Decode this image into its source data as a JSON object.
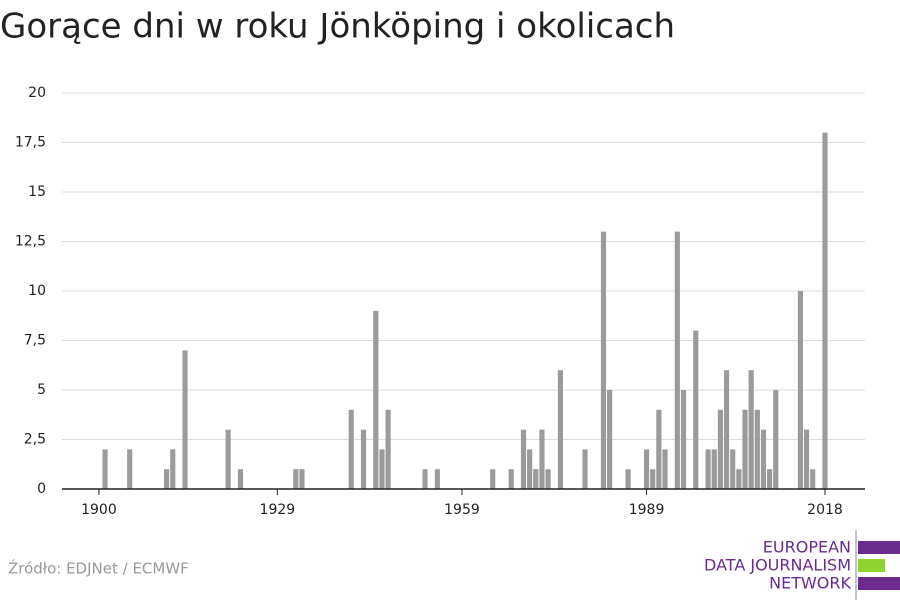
{
  "chart_data": {
    "type": "bar",
    "title": "Gorące dni w roku Jönköping i okolicach",
    "x": [
      1901,
      1905,
      1911,
      1912,
      1914,
      1921,
      1923,
      1932,
      1933,
      1941,
      1943,
      1945,
      1946,
      1947,
      1953,
      1955,
      1964,
      1967,
      1969,
      1970,
      1971,
      1972,
      1973,
      1975,
      1979,
      1982,
      1983,
      1986,
      1989,
      1990,
      1991,
      1992,
      1994,
      1995,
      1997,
      1999,
      2000,
      2001,
      2002,
      2003,
      2004,
      2005,
      2006,
      2007,
      2008,
      2009,
      2010,
      2014,
      2015,
      2016,
      2018
    ],
    "values": [
      2,
      2,
      1,
      2,
      7,
      3,
      1,
      1,
      1,
      4,
      3,
      9,
      2,
      4,
      1,
      1,
      1,
      1,
      3,
      2,
      1,
      3,
      1,
      6,
      2,
      13,
      5,
      1,
      2,
      1,
      4,
      2,
      13,
      5,
      8,
      2,
      2,
      4,
      6,
      2,
      1,
      4,
      6,
      4,
      3,
      1,
      5,
      10,
      3,
      1,
      18
    ],
    "color": "#9b9b9b",
    "xlim": [
      1894,
      2024.5
    ],
    "xticks": [
      1900,
      1929,
      1959,
      1989,
      2018
    ],
    "ylim": [
      0,
      20
    ],
    "yticks": [
      0,
      {
        "value": 2.5,
        "label": "2,5"
      },
      5,
      {
        "value": 7.5,
        "label": "7,5"
      },
      10,
      {
        "value": 12.5,
        "label": "12,5"
      },
      15,
      {
        "value": 17.5,
        "label": "17,5"
      },
      20
    ],
    "grid": true
  },
  "source": "Źródło: EDJNet / ECMWF",
  "logo": [
    "EUROPEAN",
    "DATA JOURNALISM",
    "NETWORK"
  ]
}
